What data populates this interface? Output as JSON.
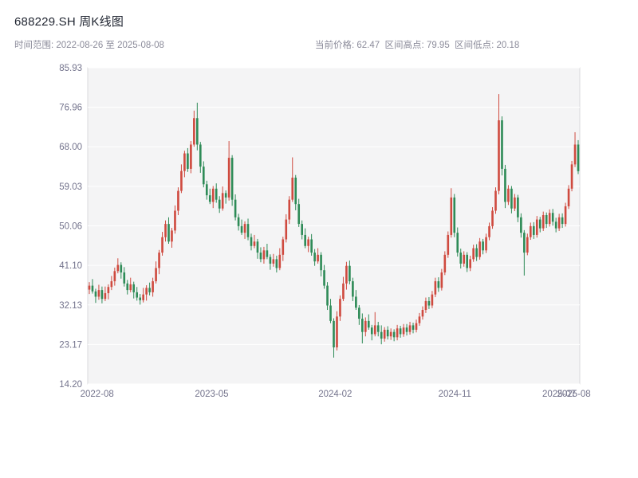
{
  "header": {
    "title": "688229.SH 周K线图",
    "subtitle_left": "时间范围: 2022-08-26 至 2025-08-08",
    "subtitle_right": "当前价格: 62.47  区间高点: 79.95  区间低点: 20.18"
  },
  "chart_data": {
    "type": "candlestick",
    "title": "688229.SH 周K线图",
    "symbol": "688229.SH",
    "period": "weekly",
    "date_range": {
      "start": "2022-08-26",
      "end": "2025-08-08"
    },
    "current_price": 62.47,
    "range_high": 79.95,
    "range_low": 20.18,
    "up_color": "#cf4a3f",
    "down_color": "#2e8b57",
    "plot_bg": "#f4f4f5",
    "plot_border": "#d8d8dc",
    "grid_color": "#ffffff",
    "tick_color": "#73738c",
    "ylim": [
      14.2,
      85.93
    ],
    "yticks": [
      "85.93",
      "76.96",
      "68.00",
      "59.03",
      "50.06",
      "41.10",
      "32.13",
      "23.17",
      "14.20"
    ],
    "xticks": [
      {
        "label": "2022-08",
        "pos": 0.019
      },
      {
        "label": "2023-05",
        "pos": 0.252
      },
      {
        "label": "2024-02",
        "pos": 0.503
      },
      {
        "label": "2024-11",
        "pos": 0.746
      },
      {
        "label": "2025-07",
        "pos": 0.958
      },
      {
        "label": "2025-08",
        "pos": 0.988
      }
    ],
    "candles": [
      [
        35.6,
        37.3,
        34.6,
        36.5
      ],
      [
        36.5,
        38.0,
        34.7,
        35.2
      ],
      [
        35.2,
        35.8,
        32.6,
        34.0
      ],
      [
        34.0,
        36.7,
        33.3,
        35.5
      ],
      [
        35.5,
        36.3,
        32.5,
        33.5
      ],
      [
        33.5,
        36.3,
        33.0,
        34.8
      ],
      [
        34.8,
        36.8,
        33.4,
        36.2
      ],
      [
        36.2,
        38.7,
        35.5,
        37.5
      ],
      [
        37.5,
        40.6,
        36.5,
        39.8
      ],
      [
        39.8,
        42.7,
        39.3,
        41.2
      ],
      [
        41.2,
        41.8,
        38.1,
        39.5
      ],
      [
        39.5,
        40.7,
        36.3,
        37.0
      ],
      [
        37.0,
        37.8,
        34.5,
        35.5
      ],
      [
        35.5,
        38.3,
        35.0,
        36.8
      ],
      [
        36.8,
        37.4,
        33.6,
        35.0
      ],
      [
        35.0,
        36.2,
        33.1,
        33.8
      ],
      [
        33.8,
        34.6,
        32.2,
        33.2
      ],
      [
        33.2,
        36.0,
        32.7,
        34.5
      ],
      [
        34.5,
        36.6,
        33.1,
        36.0
      ],
      [
        36.0,
        37.2,
        34.3,
        35.0
      ],
      [
        35.0,
        38.3,
        34.0,
        37.5
      ],
      [
        37.5,
        42.0,
        37.0,
        40.5
      ],
      [
        40.5,
        44.6,
        39.1,
        44.0
      ],
      [
        44.0,
        48.7,
        43.3,
        47.5
      ],
      [
        47.5,
        51.3,
        46.5,
        50.5
      ],
      [
        50.5,
        52.0,
        46.0,
        46.5
      ],
      [
        46.5,
        49.6,
        45.1,
        49.0
      ],
      [
        49.0,
        54.7,
        48.3,
        53.5
      ],
      [
        53.5,
        58.8,
        52.5,
        58.0
      ],
      [
        58.0,
        64.0,
        57.5,
        62.5
      ],
      [
        62.5,
        67.1,
        61.1,
        66.5
      ],
      [
        66.5,
        67.7,
        62.3,
        63.0
      ],
      [
        63.0,
        69.3,
        62.0,
        68.5
      ],
      [
        68.5,
        76.2,
        68.0,
        74.5
      ],
      [
        74.5,
        78.0,
        67.2,
        68.5
      ],
      [
        68.5,
        69.1,
        62.1,
        63.5
      ],
      [
        63.5,
        64.7,
        58.8,
        59.5
      ],
      [
        59.5,
        60.3,
        56.0,
        57.0
      ],
      [
        57.0,
        58.5,
        55.0,
        55.5
      ],
      [
        55.5,
        59.1,
        54.1,
        58.5
      ],
      [
        58.5,
        59.7,
        55.3,
        56.0
      ],
      [
        56.0,
        56.8,
        53.0,
        54.0
      ],
      [
        54.0,
        59.0,
        53.5,
        57.5
      ],
      [
        57.5,
        58.1,
        55.1,
        56.5
      ],
      [
        56.5,
        69.3,
        55.8,
        65.5
      ],
      [
        65.5,
        66.1,
        54.6,
        56.0
      ],
      [
        56.0,
        57.2,
        51.3,
        52.0
      ],
      [
        52.0,
        52.8,
        49.0,
        50.0
      ],
      [
        50.0,
        51.5,
        48.0,
        48.5
      ],
      [
        48.5,
        51.1,
        47.1,
        50.5
      ],
      [
        50.5,
        51.7,
        46.8,
        47.5
      ],
      [
        47.5,
        48.3,
        44.5,
        45.5
      ],
      [
        45.5,
        48.0,
        45.0,
        46.5
      ],
      [
        46.5,
        47.1,
        42.6,
        44.0
      ],
      [
        44.0,
        45.2,
        41.8,
        42.5
      ],
      [
        42.5,
        45.3,
        41.5,
        44.5
      ],
      [
        44.5,
        46.0,
        42.5,
        43.0
      ],
      [
        43.0,
        43.6,
        40.1,
        41.5
      ],
      [
        41.5,
        43.7,
        40.8,
        42.5
      ],
      [
        42.5,
        43.3,
        39.5,
        40.5
      ],
      [
        40.5,
        45.0,
        40.0,
        43.5
      ],
      [
        43.5,
        47.6,
        42.1,
        47.0
      ],
      [
        47.0,
        52.7,
        46.3,
        51.5
      ],
      [
        51.5,
        56.8,
        50.5,
        56.0
      ],
      [
        56.0,
        65.6,
        55.5,
        61.0
      ],
      [
        61.0,
        61.6,
        53.6,
        55.0
      ],
      [
        55.0,
        56.2,
        49.8,
        50.5
      ],
      [
        50.5,
        51.3,
        47.0,
        48.0
      ],
      [
        48.0,
        49.5,
        45.0,
        45.5
      ],
      [
        45.5,
        47.6,
        44.1,
        47.0
      ],
      [
        47.0,
        48.2,
        43.3,
        44.0
      ],
      [
        44.0,
        44.8,
        41.0,
        42.0
      ],
      [
        42.0,
        45.0,
        41.5,
        43.5
      ],
      [
        43.5,
        44.1,
        38.6,
        40.0
      ],
      [
        40.0,
        41.2,
        35.8,
        36.5
      ],
      [
        36.5,
        37.3,
        31.0,
        32.0
      ],
      [
        32.0,
        33.5,
        28.0,
        28.5
      ],
      [
        28.5,
        29.1,
        20.18,
        22.5
      ],
      [
        22.5,
        30.7,
        21.8,
        29.5
      ],
      [
        29.5,
        34.3,
        28.5,
        33.5
      ],
      [
        33.5,
        38.5,
        33.0,
        37.0
      ],
      [
        37.0,
        41.9,
        35.6,
        41.0
      ],
      [
        41.0,
        42.2,
        36.8,
        37.5
      ],
      [
        37.5,
        38.3,
        33.0,
        34.0
      ],
      [
        34.0,
        35.5,
        31.0,
        31.5
      ],
      [
        31.5,
        32.1,
        27.6,
        29.0
      ],
      [
        29.0,
        30.2,
        23.4,
        26.0
      ],
      [
        26.0,
        29.3,
        25.0,
        28.5
      ],
      [
        28.5,
        30.0,
        26.5,
        27.0
      ],
      [
        27.0,
        27.6,
        24.1,
        25.5
      ],
      [
        25.5,
        30.5,
        25.0,
        27.5
      ],
      [
        27.5,
        28.3,
        25.0,
        26.0
      ],
      [
        26.0,
        27.5,
        23.2,
        24.5
      ],
      [
        24.5,
        27.1,
        23.8,
        26.5
      ],
      [
        26.5,
        27.3,
        24.3,
        25.0
      ],
      [
        25.0,
        26.8,
        24.2,
        26.0
      ],
      [
        26.0,
        26.6,
        23.9,
        24.8
      ],
      [
        24.8,
        27.6,
        24.1,
        26.8
      ],
      [
        26.8,
        27.4,
        24.7,
        25.5
      ],
      [
        25.5,
        27.8,
        24.9,
        27.0
      ],
      [
        27.0,
        27.8,
        25.2,
        26.0
      ],
      [
        26.0,
        28.3,
        25.4,
        27.5
      ],
      [
        27.5,
        28.1,
        25.7,
        26.5
      ],
      [
        26.5,
        28.8,
        25.9,
        28.0
      ],
      [
        28.0,
        30.3,
        27.4,
        29.5
      ],
      [
        29.5,
        31.8,
        28.8,
        31.0
      ],
      [
        31.0,
        33.8,
        30.3,
        33.0
      ],
      [
        33.0,
        33.9,
        31.2,
        32.0
      ],
      [
        32.0,
        35.3,
        31.4,
        34.5
      ],
      [
        34.5,
        38.3,
        33.9,
        37.5
      ],
      [
        37.5,
        38.4,
        35.1,
        36.0
      ],
      [
        36.0,
        40.3,
        35.4,
        39.5
      ],
      [
        39.5,
        44.3,
        38.9,
        43.5
      ],
      [
        43.5,
        48.8,
        42.8,
        48.0
      ],
      [
        48.0,
        58.6,
        47.4,
        56.5
      ],
      [
        56.5,
        57.3,
        47.5,
        48.5
      ],
      [
        48.5,
        49.7,
        43.1,
        44.0
      ],
      [
        44.0,
        44.9,
        40.4,
        41.5
      ],
      [
        41.5,
        44.3,
        40.8,
        43.5
      ],
      [
        43.5,
        44.1,
        39.6,
        40.5
      ],
      [
        40.5,
        43.3,
        39.8,
        42.5
      ],
      [
        42.5,
        45.8,
        41.9,
        45.0
      ],
      [
        45.0,
        45.9,
        42.1,
        43.0
      ],
      [
        43.0,
        47.3,
        42.4,
        46.5
      ],
      [
        46.5,
        47.1,
        43.6,
        44.5
      ],
      [
        44.5,
        48.3,
        43.9,
        47.5
      ],
      [
        47.5,
        50.8,
        46.8,
        50.0
      ],
      [
        50.0,
        54.3,
        49.4,
        53.5
      ],
      [
        53.5,
        58.8,
        52.8,
        58.0
      ],
      [
        58.0,
        79.95,
        57.2,
        74.0
      ],
      [
        74.0,
        74.9,
        61.5,
        63.0
      ],
      [
        63.0,
        63.9,
        54.1,
        55.5
      ],
      [
        55.5,
        59.3,
        54.8,
        58.5
      ],
      [
        58.5,
        59.1,
        52.9,
        54.0
      ],
      [
        54.0,
        57.3,
        53.4,
        56.5
      ],
      [
        56.5,
        57.1,
        50.9,
        52.0
      ],
      [
        52.0,
        52.9,
        47.4,
        48.5
      ],
      [
        48.5,
        49.1,
        38.8,
        44.0
      ],
      [
        44.0,
        48.3,
        43.4,
        47.5
      ],
      [
        47.5,
        50.8,
        46.9,
        50.0
      ],
      [
        50.0,
        50.9,
        47.1,
        48.0
      ],
      [
        48.0,
        52.3,
        47.4,
        51.5
      ],
      [
        51.5,
        52.1,
        48.6,
        49.5
      ],
      [
        49.5,
        53.3,
        48.9,
        52.5
      ],
      [
        52.5,
        53.1,
        49.6,
        50.5
      ],
      [
        50.5,
        53.8,
        49.9,
        53.0
      ],
      [
        53.0,
        53.9,
        50.1,
        51.0
      ],
      [
        51.0,
        51.9,
        48.6,
        49.5
      ],
      [
        49.5,
        52.8,
        48.9,
        52.0
      ],
      [
        52.0,
        52.9,
        49.6,
        50.5
      ],
      [
        50.5,
        55.3,
        49.9,
        54.5
      ],
      [
        54.5,
        59.3,
        53.9,
        58.5
      ],
      [
        58.5,
        64.8,
        57.9,
        64.0
      ],
      [
        64.0,
        71.3,
        63.4,
        68.5
      ],
      [
        68.5,
        69.5,
        61.8,
        62.47
      ]
    ]
  }
}
